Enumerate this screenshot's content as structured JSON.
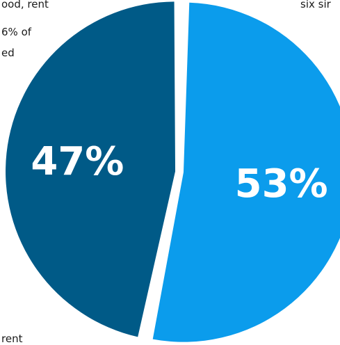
{
  "text_fragments": [
    "ood, rent",
    "6% of",
    "ed",
    "rent",
    "six sir"
  ],
  "chart_data": {
    "type": "pie",
    "slices": [
      {
        "value": 47,
        "label": "47%",
        "color": "#005a87"
      },
      {
        "value": 53,
        "label": "53%",
        "color": "#0b9cec"
      }
    ]
  }
}
